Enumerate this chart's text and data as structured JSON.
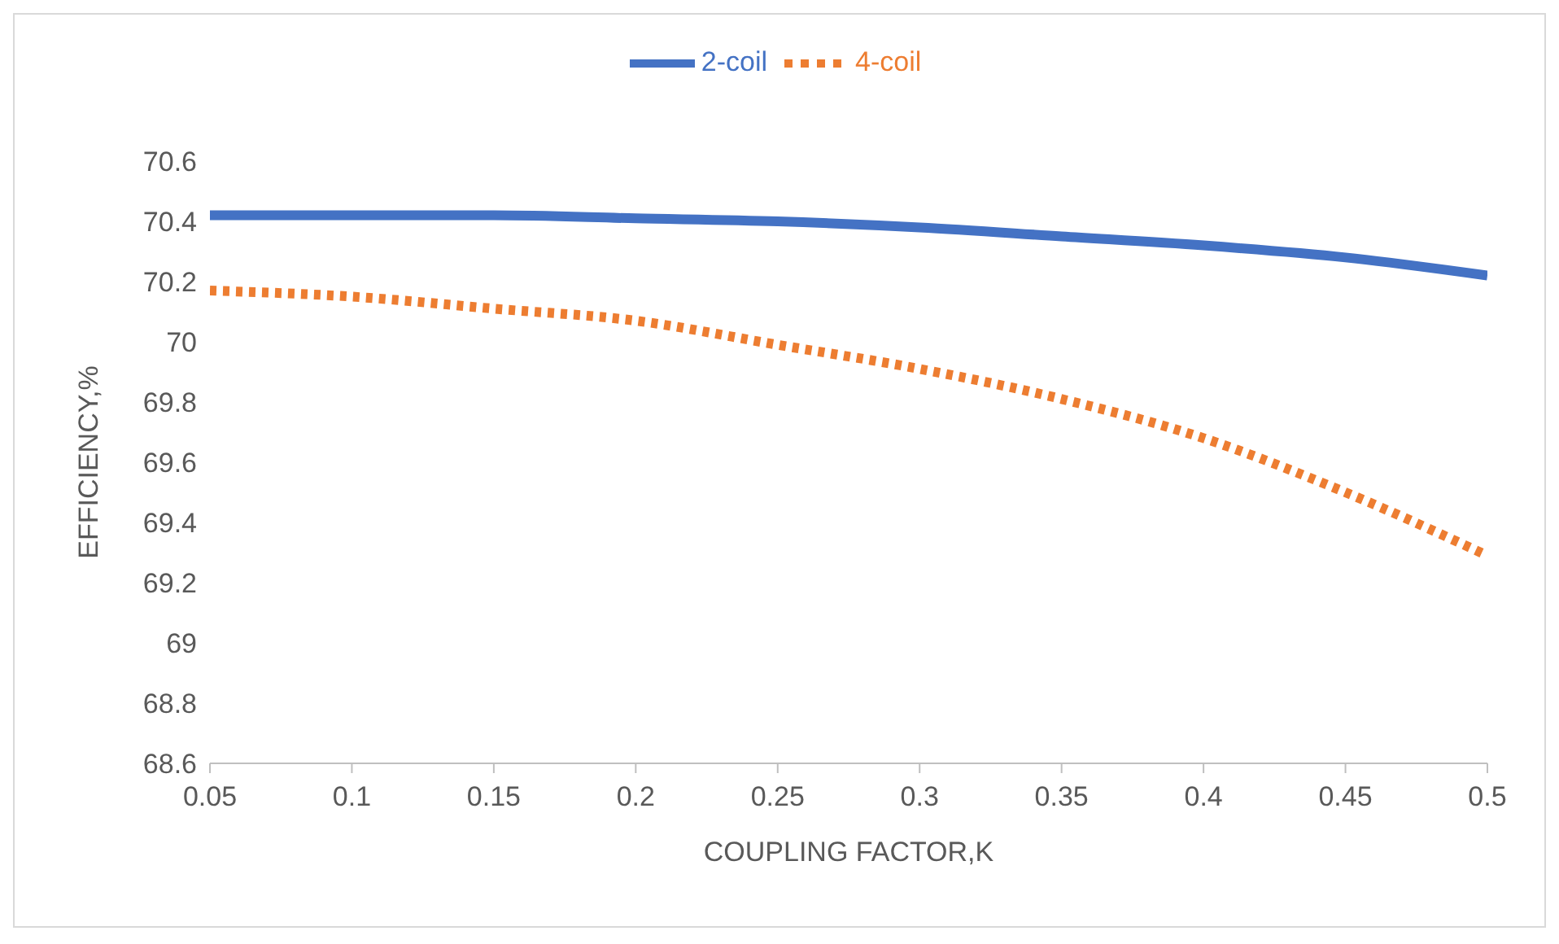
{
  "chart_data": {
    "type": "line",
    "xlabel": "COUPLING FACTOR,K",
    "ylabel": "EFFICIENCY,%",
    "x": [
      0.05,
      0.1,
      0.15,
      0.2,
      0.25,
      0.3,
      0.35,
      0.4,
      0.45,
      0.5
    ],
    "series": [
      {
        "name": "2-coil",
        "color": "#4472c4",
        "line_style": "solid",
        "values": [
          70.42,
          70.42,
          70.42,
          70.41,
          70.4,
          70.38,
          70.35,
          70.32,
          70.28,
          70.22
        ]
      },
      {
        "name": "4-coil",
        "color": "#ed7d31",
        "line_style": "dotted",
        "values": [
          70.17,
          70.15,
          70.11,
          70.07,
          69.99,
          69.91,
          69.81,
          69.68,
          69.5,
          69.29
        ]
      }
    ],
    "xlim": [
      0.05,
      0.5
    ],
    "xticks": [
      0.05,
      0.1,
      0.15,
      0.2,
      0.25,
      0.3,
      0.35,
      0.4,
      0.45,
      0.5
    ],
    "ylim": [
      68.6,
      70.6
    ],
    "yticks": [
      68.6,
      68.8,
      69,
      69.2,
      69.4,
      69.6,
      69.8,
      70,
      70.2,
      70.4,
      70.6
    ],
    "grid": false,
    "legend": "top",
    "marker": "none"
  }
}
